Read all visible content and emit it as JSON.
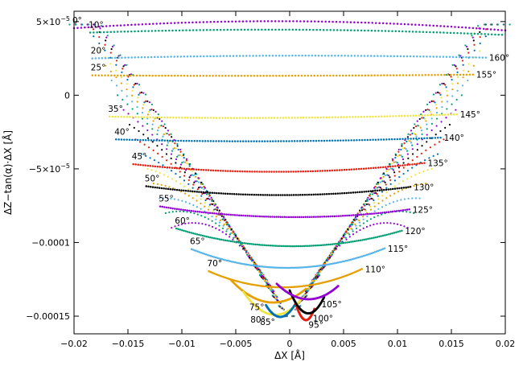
{
  "chart_data": {
    "type": "scatter",
    "xlabel": "ΔX [Å]",
    "ylabel": "ΔZ−tan(α)·ΔX [Å]",
    "xlim": [
      -0.02,
      0.02
    ],
    "ylim": [
      -0.000162,
      5.7e-05
    ],
    "grid": false,
    "legend": "none",
    "x_ticks": [
      {
        "value": -0.02,
        "label": "−0.02"
      },
      {
        "value": -0.015,
        "label": "−0.015"
      },
      {
        "value": -0.01,
        "label": "−0.01"
      },
      {
        "value": -0.005,
        "label": "−0.005"
      },
      {
        "value": 0,
        "label": "0"
      },
      {
        "value": 0.005,
        "label": "0.005"
      },
      {
        "value": 0.01,
        "label": "0.01"
      },
      {
        "value": 0.015,
        "label": "0.015"
      },
      {
        "value": 0.02,
        "label": "0.02"
      }
    ],
    "y_ticks": [
      {
        "value": 5e-05,
        "label": "5×10",
        "sup": "−5"
      },
      {
        "value": 0,
        "label": "0"
      },
      {
        "value": -5e-05,
        "label": "−5×10",
        "sup": "−5"
      },
      {
        "value": -0.0001,
        "label": "−0.0001"
      },
      {
        "value": -0.00015,
        "label": "−0.00015"
      }
    ],
    "palette": [
      "#9400d3",
      "#009e73",
      "#56b4e9",
      "#e69f00",
      "#f0e442",
      "#0072b2",
      "#e51e10",
      "#000000"
    ],
    "pair_curves": [
      {
        "left_label": "0°",
        "right_label": "",
        "left_x": -0.02,
        "right_x": 0.02,
        "depth": 4.92e-05,
        "bump": 5.2e-06,
        "left_y": 4.55e-05,
        "right_y": 4.4e-05
      },
      {
        "left_label": "10°",
        "right_label": "",
        "left_x": -0.0185,
        "right_x": 0.0197,
        "depth": 4.38e-05,
        "bump": 3.4e-06,
        "left_y": 4.25e-05,
        "right_y": 4.1e-05
      },
      {
        "left_label": "20°",
        "right_label": "160°",
        "left_x": -0.0183,
        "right_x": 0.0182,
        "depth": 2.65e-05,
        "bump": 1.8e-06,
        "left_y": 2.5e-05,
        "right_y": 2.55e-05
      },
      {
        "left_label": "25°",
        "right_label": "155°",
        "left_x": -0.0183,
        "right_x": 0.017,
        "depth": 1.3e-05,
        "bump": 1e-06,
        "left_y": 1.35e-05,
        "right_y": 1.4e-05
      },
      {
        "left_label": "35°",
        "right_label": "145°",
        "left_x": -0.0167,
        "right_x": 0.0155,
        "depth": -1.55e-05,
        "bump": 8e-07,
        "left_y": -1.45e-05,
        "right_y": -1.3e-05
      },
      {
        "left_label": "40°",
        "right_label": "140°",
        "left_x": -0.0161,
        "right_x": 0.014,
        "depth": -3.15e-05,
        "bump": 1.4e-06,
        "left_y": -3e-05,
        "right_y": -2.88e-05
      },
      {
        "left_label": "45°",
        "right_label": "135°",
        "left_x": -0.0145,
        "right_x": 0.0125,
        "depth": -5.25e-05,
        "bump": 2.6e-06,
        "left_y": -4.68e-05,
        "right_y": -4.6e-05
      },
      {
        "left_label": "50°",
        "right_label": "130°",
        "left_x": -0.0133,
        "right_x": 0.0112,
        "depth": -6.88e-05,
        "bump": 5e-06,
        "left_y": -6.18e-05,
        "right_y": -6.22e-05
      },
      {
        "left_label": "55°",
        "right_label": "125°",
        "left_x": -0.012,
        "right_x": 0.0111,
        "depth": -8.45e-05,
        "bump": 9e-06,
        "left_y": -7.55e-05,
        "right_y": -7.75e-05
      },
      {
        "left_label": "60°",
        "right_label": "120°",
        "left_x": -0.0105,
        "right_x": 0.0104,
        "depth": -0.0001035,
        "bump": 5e-06,
        "left_y": -9.05e-05,
        "right_y": -9.2e-05
      },
      {
        "left_label": "65°",
        "right_label": "115°",
        "left_x": -0.0091,
        "right_x": 0.0088,
        "depth": -0.000118,
        "bump": 4e-06,
        "left_y": -0.0001045,
        "right_y": -0.000104
      },
      {
        "left_label": "70°",
        "right_label": "110°",
        "left_x": -0.0075,
        "right_x": 0.0067,
        "depth": -0.000131,
        "bump": 3e-06,
        "left_y": -0.0001195,
        "right_y": -0.000118
      }
    ],
    "single_curves": [
      {
        "label": "75°",
        "label_side": "left",
        "x_start": -0.0055,
        "x_end": 0.0015,
        "center": -0.0018,
        "depth": -0.0001405,
        "y_start": -0.000125,
        "y_end": -0.0001315
      },
      {
        "label": "80°",
        "label_side": "left",
        "x_start": -0.0043,
        "x_end": 0.0012,
        "center": -0.0017,
        "depth": -0.000149,
        "y_start": -0.0001335,
        "y_end": -0.0001375
      },
      {
        "label": "85°",
        "label_side": "left",
        "x_start": -0.0022,
        "x_end": 0.0005,
        "center": -0.0008,
        "depth": -0.0001505,
        "y_start": -0.0001425,
        "y_end": -0.000142
      },
      {
        "label": "95°",
        "label_side": "right",
        "x_start": 0.0005,
        "x_end": 0.0023,
        "center": 0.0013,
        "depth": -0.0001525,
        "y_start": -0.00014,
        "y_end": -0.000145
      },
      {
        "label": "100°",
        "label_side": "right",
        "x_start": 0.0,
        "x_end": 0.0032,
        "center": 0.0017,
        "depth": -0.000148,
        "y_start": -0.0001325,
        "y_end": -0.000137
      },
      {
        "label": "105°",
        "label_side": "right",
        "x_start": -0.0012,
        "x_end": 0.0045,
        "center": 0.0025,
        "depth": -0.0001385,
        "y_start": -0.000128,
        "y_end": -0.0001295
      }
    ]
  }
}
